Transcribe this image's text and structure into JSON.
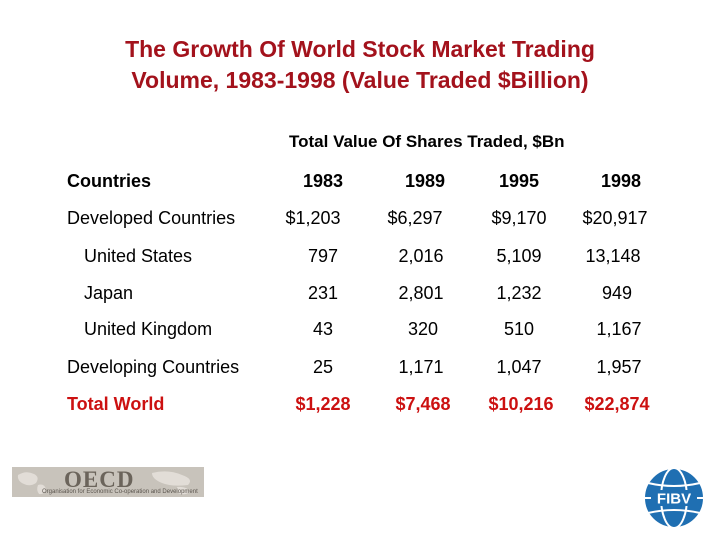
{
  "title_line1": "The Growth Of World Stock Market Trading",
  "title_line2": "Volume, 1983-1998 (Value Traded $Billion)",
  "table": {
    "group_header": "Total Value Of Shares Traded, $Bn",
    "countries_label": "Countries",
    "years": [
      "1983",
      "1989",
      "1995",
      "1998"
    ],
    "rows": [
      {
        "label": "Developed Countries",
        "values": [
          "$1,203",
          "$6,297",
          "$9,170",
          "$20,917"
        ]
      },
      {
        "label": "United States",
        "values": [
          "797",
          "2,016",
          "5,109",
          "13,148"
        ]
      },
      {
        "label": "Japan",
        "values": [
          "231",
          "2,801",
          "1,232",
          "949"
        ]
      },
      {
        "label": "United Kingdom",
        "values": [
          "43",
          "320",
          "510",
          "1,167"
        ]
      },
      {
        "label": "Developing Countries",
        "values": [
          "25",
          "1,171",
          "1,047",
          "1,957"
        ]
      },
      {
        "label": "Total World",
        "values": [
          "$1,228",
          "$7,468",
          "$10,216",
          "$22,874"
        ]
      }
    ]
  },
  "logos": {
    "oecd_name": "OECD",
    "oecd_subtitle": "Organisation for Economic Co-operation and Development",
    "fibv_text": "FIBV"
  },
  "colors": {
    "title": "#a3121c",
    "total_row": "#cc1111",
    "fibv_blue": "#1f6fb2"
  }
}
